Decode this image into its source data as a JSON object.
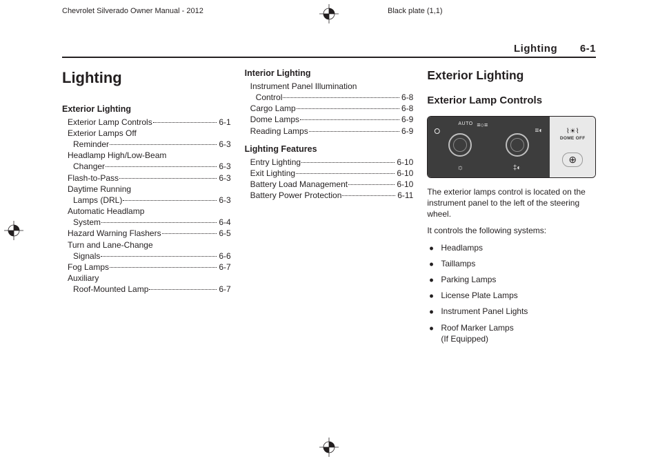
{
  "header": {
    "manual": "Chevrolet Silverado Owner Manual - 2012",
    "plate": "Black plate (1,1)"
  },
  "pageHeader": {
    "section": "Lighting",
    "page": "6-1"
  },
  "col1": {
    "title": "Lighting",
    "groups": [
      {
        "head": "Exterior Lighting",
        "items": [
          {
            "lines": [
              "Exterior Lamp Controls"
            ],
            "pg": "6-1"
          },
          {
            "lines": [
              "Exterior Lamps Off",
              "Reminder"
            ],
            "pg": "6-3"
          },
          {
            "lines": [
              "Headlamp High/Low-Beam",
              "Changer"
            ],
            "pg": "6-3"
          },
          {
            "lines": [
              "Flash-to-Pass"
            ],
            "pg": "6-3"
          },
          {
            "lines": [
              "Daytime Running",
              "Lamps (DRL)"
            ],
            "pg": "6-3"
          },
          {
            "lines": [
              "Automatic Headlamp",
              "System"
            ],
            "pg": "6-4"
          },
          {
            "lines": [
              "Hazard Warning Flashers"
            ],
            "pg": "6-5"
          },
          {
            "lines": [
              "Turn and Lane-Change",
              "Signals"
            ],
            "pg": "6-6"
          },
          {
            "lines": [
              "Fog Lamps"
            ],
            "pg": "6-7"
          },
          {
            "lines": [
              "Auxiliary",
              "Roof-Mounted Lamp"
            ],
            "pg": "6-7"
          }
        ]
      }
    ]
  },
  "col2": {
    "groups": [
      {
        "head": "Interior Lighting",
        "items": [
          {
            "lines": [
              "Instrument Panel Illumination",
              "Control"
            ],
            "pg": "6-8"
          },
          {
            "lines": [
              "Cargo Lamp"
            ],
            "pg": "6-8"
          },
          {
            "lines": [
              "Dome Lamps"
            ],
            "pg": "6-9"
          },
          {
            "lines": [
              "Reading Lamps"
            ],
            "pg": "6-9"
          }
        ]
      },
      {
        "head": "Lighting Features",
        "items": [
          {
            "lines": [
              "Entry Lighting"
            ],
            "pg": "6-10"
          },
          {
            "lines": [
              "Exit Lighting"
            ],
            "pg": "6-10"
          },
          {
            "lines": [
              "Battery Load Management"
            ],
            "pg": "6-10"
          },
          {
            "lines": [
              "Battery Power Protection"
            ],
            "pg": "6-11"
          }
        ]
      }
    ]
  },
  "col3": {
    "h2": "Exterior Lighting",
    "h3": "Exterior Lamp Controls",
    "control": {
      "auto": "AUTO",
      "dome": "DOME OFF"
    },
    "para1": "The exterior lamps control is located on the instrument panel to the left of the steering wheel.",
    "para2": "It controls the following systems:",
    "bullets": [
      "Headlamps",
      "Taillamps",
      "Parking Lamps",
      "License Plate Lamps",
      "Instrument Panel Lights",
      "Roof Marker Lamps\n(If Equipped)"
    ]
  }
}
